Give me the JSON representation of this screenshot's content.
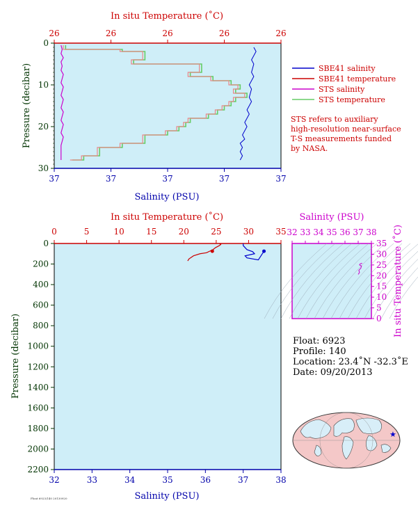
{
  "chart_data": [
    {
      "type": "line",
      "name": "near-surface-profile",
      "top_axis": {
        "label": "In situ Temperature (˚C)",
        "ticks": [
          "26",
          "26",
          "26",
          "26",
          "26"
        ],
        "color": "#cc0000"
      },
      "bottom_axis": {
        "label": "Salinity (PSU)",
        "ticks": [
          "37",
          "37",
          "37",
          "37",
          "37"
        ],
        "color": "#0000aa"
      },
      "left_axis": {
        "label": "Pressure (decibar)",
        "ticks": [
          "0",
          "10",
          "20",
          "30"
        ],
        "range": [
          0,
          30
        ],
        "color": "#003300"
      },
      "legend": [
        {
          "label": "SBE41 salinity",
          "color": "#0000cc"
        },
        {
          "label": "SBE41 temperature",
          "color": "#cc0000"
        },
        {
          "label": "STS salinity",
          "color": "#cc00cc"
        },
        {
          "label": "STS temperature",
          "color": "#66cc66"
        }
      ],
      "note": [
        "STS refers to auxiliary",
        "high-resolution near-surface",
        "T-S measurements funded",
        "by NASA."
      ],
      "series": {
        "sbe41_salinity": {
          "x_frac": [
            0.88,
            0.89,
            0.87,
            0.88,
            0.87,
            0.88,
            0.86,
            0.87,
            0.86,
            0.87,
            0.85,
            0.86,
            0.84,
            0.85,
            0.83,
            0.84,
            0.82,
            0.83,
            0.82,
            0.83,
            0.82
          ],
          "p": [
            1,
            2,
            4,
            5,
            7,
            8,
            10,
            11,
            13,
            14,
            16,
            17,
            19,
            20,
            22,
            23,
            24,
            25,
            26,
            27,
            28
          ]
        },
        "sts_salinity": {
          "x_frac": [
            0.03,
            0.035,
            0.03,
            0.04,
            0.03,
            0.035,
            0.03,
            0.04,
            0.035,
            0.03,
            0.04,
            0.035,
            0.03,
            0.04,
            0.035,
            0.03,
            0.04,
            0.035,
            0.03,
            0.04,
            0.035,
            0.03,
            0.04,
            0.035,
            0.03,
            0.03
          ],
          "p": [
            0.5,
            1.5,
            2.5,
            3.5,
            4.5,
            5.5,
            6.5,
            7.5,
            8.5,
            9.5,
            10.5,
            11.5,
            12.5,
            13.5,
            14.5,
            15.5,
            16.5,
            17.5,
            18.5,
            19.5,
            20.5,
            21.5,
            22.5,
            23.5,
            24.5,
            28
          ]
        },
        "temperature": {
          "x_frac": [
            0.05,
            0.3,
            0.4,
            0.35,
            0.65,
            0.6,
            0.7,
            0.78,
            0.82,
            0.8,
            0.85,
            0.8,
            0.78,
            0.75,
            0.72,
            0.68,
            0.6,
            0.58,
            0.55,
            0.5,
            0.4,
            0.3,
            0.2,
            0.13,
            0.08
          ],
          "p": [
            0.5,
            1.5,
            2,
            4,
            5,
            7,
            8,
            9,
            10,
            11,
            12,
            13,
            14,
            15,
            16,
            17,
            18,
            19,
            20,
            21,
            22,
            24,
            25,
            27,
            28
          ]
        }
      }
    },
    {
      "type": "line",
      "name": "full-depth-profile",
      "top_axis": {
        "label": "In situ Temperature (˚C)",
        "ticks": [
          "0",
          "5",
          "10",
          "15",
          "20",
          "25",
          "30",
          "35"
        ],
        "range": [
          0,
          35
        ],
        "color": "#cc0000"
      },
      "bottom_axis": {
        "label": "Salinity (PSU)",
        "ticks": [
          "32",
          "33",
          "34",
          "35",
          "36",
          "37",
          "38"
        ],
        "range": [
          32,
          38
        ],
        "color": "#0000aa"
      },
      "left_axis": {
        "label": "Pressure (decibar)",
        "ticks": [
          "0",
          "200",
          "400",
          "600",
          "800",
          "1000",
          "1200",
          "1400",
          "1600",
          "1800",
          "2000",
          "2200"
        ],
        "range": [
          0,
          2200
        ],
        "color": "#003300"
      },
      "series": {
        "temperature": {
          "x": [
            25.8,
            25.6,
            25.7,
            25.5,
            24.9,
            24.5,
            23.5,
            22.5,
            21.5,
            20.8,
            20.6
          ],
          "p": [
            0,
            5,
            10,
            20,
            40,
            60,
            90,
            100,
            120,
            150,
            170
          ]
        },
        "salinity": {
          "x": [
            37.0,
            37.0,
            37.0,
            37.0,
            37.05,
            37.1,
            37.25,
            37.3,
            37.05,
            37.1,
            37.4,
            37.55
          ],
          "p": [
            0,
            5,
            10,
            20,
            40,
            60,
            80,
            100,
            120,
            140,
            160,
            75
          ]
        },
        "end_markers": [
          {
            "series": "temperature",
            "x": 24.4,
            "p": 75
          },
          {
            "series": "salinity",
            "x": 37.55,
            "p": 75
          }
        ]
      }
    },
    {
      "type": "line",
      "name": "ts-diagram",
      "top_axis": {
        "label": "Salinity (PSU)",
        "ticks": [
          "32",
          "33",
          "34",
          "35",
          "36",
          "37",
          "38"
        ],
        "range": [
          32,
          38
        ],
        "color": "#cc00cc"
      },
      "right_axis": {
        "label": "In situ Temperature (˚C)",
        "ticks": [
          "0",
          "5",
          "10",
          "15",
          "20",
          "25",
          "30",
          "35"
        ],
        "range": [
          0,
          35
        ],
        "color": "#cc00cc"
      },
      "series": {
        "ts": {
          "s": [
            37.0,
            37.1,
            37.05,
            37.2,
            37.25,
            37.1,
            37.15,
            37.3,
            37.2
          ],
          "t": [
            20.6,
            21.5,
            22.5,
            23.5,
            24.5,
            25.0,
            25.5,
            25.8,
            25.6
          ]
        }
      }
    }
  ],
  "float_info": {
    "float": "Float:  6923",
    "profile": "Profile:  140",
    "location": "Location:  23.4˚N  -32.3˚E",
    "date": "Date:  09/20/2013"
  },
  "footer": "Float 6923/140 20130920"
}
